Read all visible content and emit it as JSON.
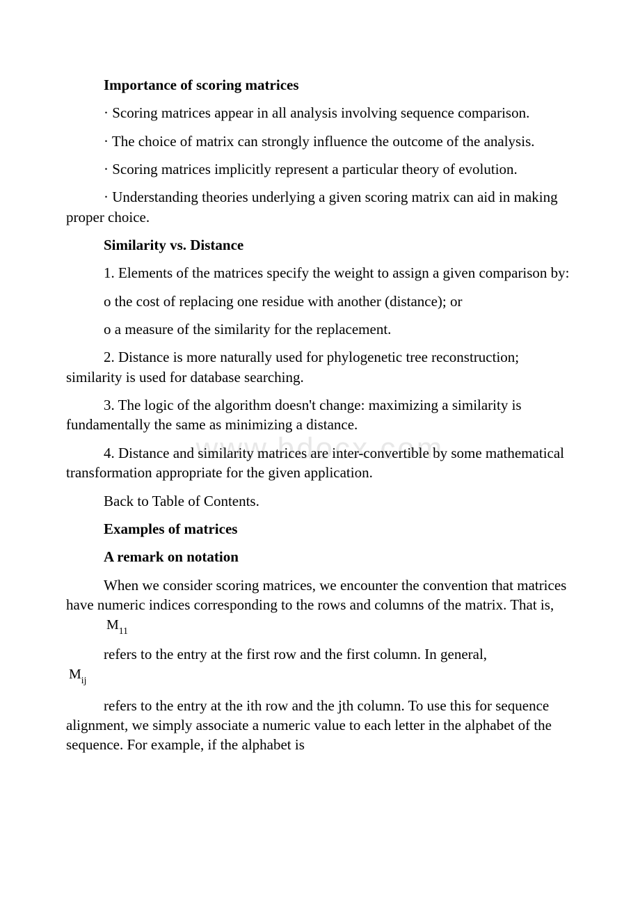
{
  "watermark": "www.bdocx.com",
  "section1": {
    "heading": "Importance of scoring matrices",
    "b1": "· Scoring matrices appear in all analysis involving sequence comparison.",
    "b2": "· The choice of matrix can strongly influence the outcome of the analysis.",
    "b3": "· Scoring matrices implicitly represent a particular theory of evolution.",
    "b4": "· Understanding theories underlying a given scoring matrix can aid in making proper choice."
  },
  "section2": {
    "heading": "Similarity vs. Distance",
    "p1": "1. Elements of the matrices specify the weight to assign a given comparison by:",
    "p2": "o the cost of replacing one residue with another (distance); or",
    "p3": "o a measure of the similarity for the replacement.",
    "p4": "2. Distance is more naturally used for phylogenetic tree reconstruction; similarity is used for database searching.",
    "p5": "3. The logic of the algorithm doesn't change: maximizing a similarity is fundamentally the same as minimizing a distance.",
    "p6": "4. Distance and similarity matrices are inter-convertible by some mathematical transformation appropriate for the given application.",
    "p7": "Back to Table of Contents."
  },
  "section3": {
    "heading1": "Examples of matrices",
    "heading2": "A remark on notation",
    "p1a": "When we consider scoring matrices, we encounter the convention that matrices have numeric indices corresponding to the rows and columns of the matrix. That is,   ",
    "m11_base": "M",
    "m11_sub": "11",
    "p2a": "refers to the entry at the first row and the first column. In general,",
    "mij_base": "M",
    "mij_sub": "ij",
    "p3": "refers to the entry at the ith row and the jth column. To use this for sequence alignment, we simply associate a numeric value to each letter in the alphabet of the sequence. For example, if the alphabet is"
  }
}
